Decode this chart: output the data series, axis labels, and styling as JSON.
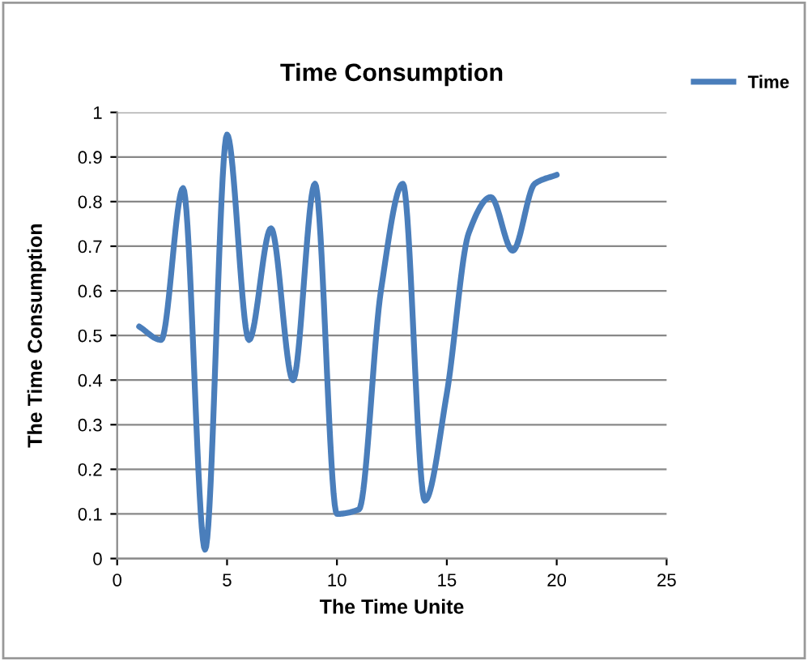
{
  "chart_data": {
    "type": "line",
    "title": "Time Consumption",
    "xlabel": "The Time Unite",
    "ylabel": "The Time Consumption",
    "x": [
      1,
      2,
      3,
      4,
      5,
      6,
      7,
      8,
      9,
      10,
      11,
      12,
      13,
      14,
      15,
      16,
      17,
      18,
      19,
      20
    ],
    "series": [
      {
        "name": "Time",
        "color": "#4a7ebb",
        "values": [
          0.52,
          0.49,
          0.83,
          0.02,
          0.95,
          0.49,
          0.74,
          0.4,
          0.84,
          0.1,
          0.11,
          0.6,
          0.84,
          0.13,
          0.37,
          0.73,
          0.81,
          0.69,
          0.84,
          0.86
        ]
      }
    ],
    "xlim": [
      0,
      25
    ],
    "xticks": [
      0,
      5,
      10,
      15,
      20,
      25
    ],
    "ylim": [
      0,
      1
    ],
    "yticks": [
      0,
      0.1,
      0.2,
      0.3,
      0.4,
      0.5,
      0.6,
      0.7,
      0.8,
      0.9,
      1
    ],
    "grid": "y",
    "legend": "top right",
    "marker": "none",
    "line_style": "solid"
  }
}
